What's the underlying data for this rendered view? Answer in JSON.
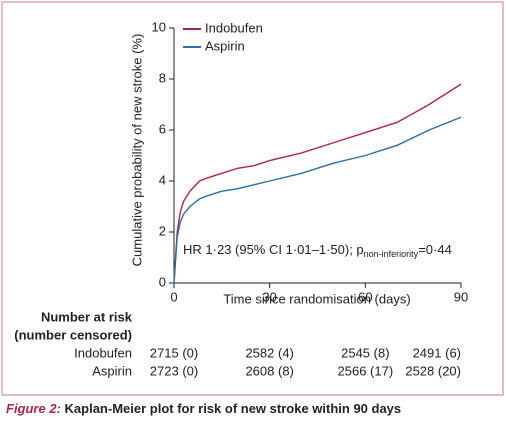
{
  "chart_data": {
    "type": "line",
    "y_label": "Cumulative probability of new stroke (%)",
    "x_label": "Time since randomisation (days)",
    "x": [
      0,
      1,
      2,
      3,
      5,
      8,
      10,
      15,
      20,
      25,
      30,
      40,
      50,
      60,
      70,
      80,
      90
    ],
    "series": [
      {
        "name": "Indobufen",
        "color": "#b0263f",
        "values": [
          0,
          2.0,
          2.8,
          3.2,
          3.6,
          4.0,
          4.1,
          4.3,
          4.5,
          4.6,
          4.8,
          5.1,
          5.5,
          5.9,
          6.3,
          7.0,
          7.8
        ]
      },
      {
        "name": "Aspirin",
        "color": "#2a6fa8",
        "values": [
          0,
          1.8,
          2.4,
          2.7,
          3.0,
          3.3,
          3.4,
          3.6,
          3.7,
          3.85,
          4.0,
          4.3,
          4.7,
          5.0,
          5.4,
          6.0,
          6.5
        ]
      }
    ],
    "xlim": [
      0,
      90
    ],
    "xticks": [
      0,
      30,
      60,
      90
    ],
    "ylim": [
      0,
      10
    ],
    "yticks": [
      0,
      2,
      4,
      6,
      8,
      10
    ],
    "annotation": {
      "main": "HR 1·23 (95% CI 1·01–1·50); p",
      "sub": "non-inferiority",
      "tail": "=0·44"
    },
    "risk_table": {
      "title": [
        "Number at risk",
        "(number censored)"
      ],
      "rows": [
        {
          "name": "Indobufen",
          "cells": [
            "2715 (0)",
            "2582 (4)",
            "2545 (8)",
            "2491 (6)"
          ]
        },
        {
          "name": "Aspirin",
          "cells": [
            "2723 (0)",
            "2608 (8)",
            "2566 (17)",
            "2528 (20)"
          ]
        }
      ]
    },
    "caption": {
      "label": "Figure 2:",
      "text": " Kaplan-Meier plot for risk of new stroke within 90 days"
    }
  }
}
